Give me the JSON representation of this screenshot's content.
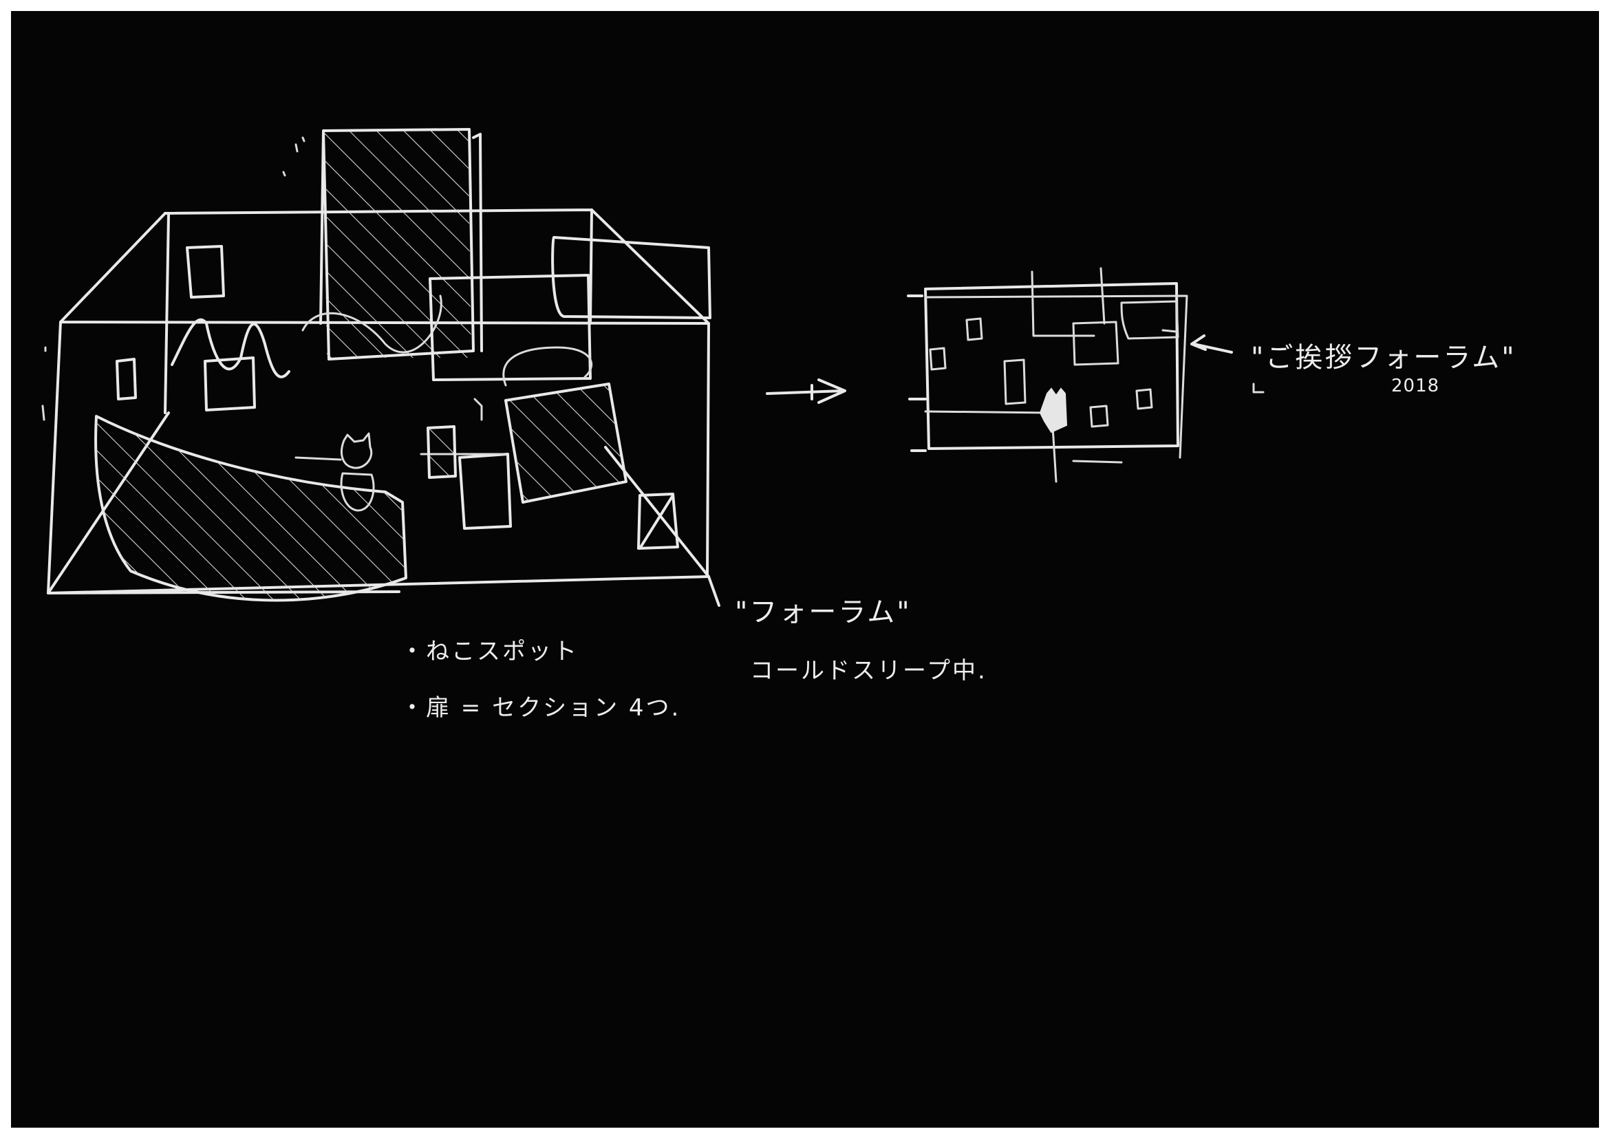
{
  "notes": {
    "cat_spot": "・ねこスポット",
    "door_sections": "・扉 = セクション 4つ.",
    "forum": "\"フォーラム\"",
    "cold_sleep": "コールドスリープ中.",
    "title_quote_open": "\"",
    "title": "ご挨拶フォーラム",
    "title_quote_close": "\"",
    "year": "2018"
  },
  "colors": {
    "paper": "#050505",
    "chalk": "#e9e9e9",
    "border": "#ffffff"
  }
}
